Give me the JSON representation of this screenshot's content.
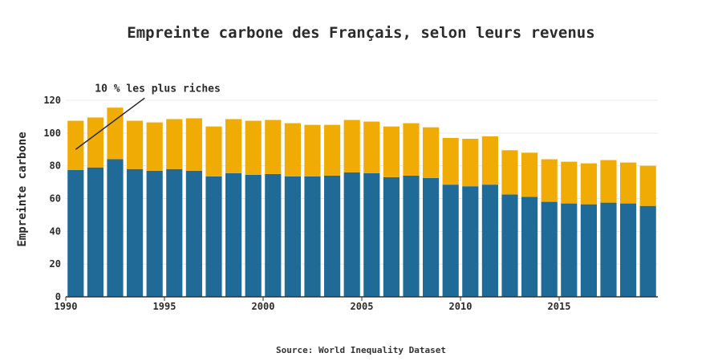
{
  "title": "Empreinte carbone des Français, selon leurs revenus",
  "source": "Source: World Inequality Dataset",
  "colors": {
    "bottom": "#1f6a96",
    "top": "#f0ac05",
    "grid": "#e9e9e9",
    "axis": "#333333"
  },
  "chart_data": {
    "type": "bar",
    "stacked": true,
    "title": "Empreinte carbone des Français, selon leurs revenus",
    "xlabel": "",
    "ylabel": "Empreinte carbone",
    "ylim": [
      0,
      120
    ],
    "yticks": [
      0,
      20,
      40,
      60,
      80,
      100,
      120
    ],
    "xticks": [
      1990,
      1995,
      2000,
      2005,
      2010,
      2015
    ],
    "grid": true,
    "annotation": {
      "text": "10 % les plus riches",
      "x": 1990,
      "y": 90
    },
    "categories": [
      1990,
      1991,
      1992,
      1993,
      1994,
      1995,
      1996,
      1997,
      1998,
      1999,
      2000,
      2001,
      2002,
      2003,
      2004,
      2005,
      2006,
      2007,
      2008,
      2009,
      2010,
      2011,
      2012,
      2013,
      2014,
      2015,
      2016,
      2017,
      2018,
      2019
    ],
    "series": [
      {
        "values": [
          77.5,
          79,
          84,
          78,
          77,
          78,
          77,
          73.5,
          75.5,
          74.5,
          75,
          73.5,
          73.5,
          74,
          76,
          75.5,
          73,
          74,
          72.5,
          68.5,
          67.5,
          68.5,
          62.5,
          61,
          58,
          57,
          56.5,
          57.5,
          57,
          55.5
        ]
      },
      {
        "values": [
          30,
          30.5,
          31.5,
          29.5,
          29.5,
          30.5,
          32,
          30.5,
          33,
          33,
          33,
          32.5,
          31.5,
          31,
          32,
          31.5,
          31,
          32,
          31,
          28.5,
          29,
          29.5,
          27,
          27,
          26,
          25.5,
          25,
          26,
          25,
          24.5
        ]
      }
    ]
  }
}
